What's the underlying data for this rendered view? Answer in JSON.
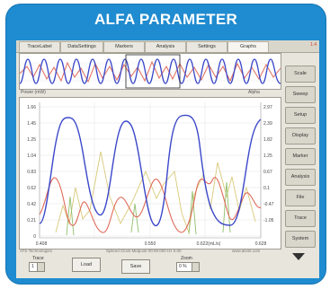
{
  "title": "ALFA PARAMETER",
  "tabs": [
    "TraceLabel",
    "DataSettings",
    "Markers",
    "Analysis",
    "Settings",
    "Graphs"
  ],
  "active_tab": "Graphs",
  "corner_label": "1.4",
  "plot": {
    "left_axis_title": "Power (mW)",
    "right_axis_title": "Alpha",
    "left_ticks": [
      "1.66",
      "1.45",
      "1.25",
      "1.04",
      "0.83",
      "0.62",
      "0.42",
      "0.21",
      "0"
    ],
    "right_ticks": [
      "2.97",
      "2.39",
      "1.82",
      "1.25",
      "0.67",
      "0.1",
      "-0.47",
      "-1.05"
    ],
    "x_ticks": [
      "0.408",
      "0.550",
      "0.622(mL/s)",
      "0.628"
    ]
  },
  "sidebar": [
    "Scale",
    "Sweep",
    "Setup",
    "Display",
    "Marker",
    "Analysis",
    "File",
    "Trace",
    "System"
  ],
  "footer": {
    "left_small": "ATS Technologies",
    "mid_small": "Spliced Clock Midpoint 00:00:000 Hz   0.00",
    "right_small": "www.atsint.com",
    "trace_label": "Trace",
    "trace_value": "1",
    "load_label": "Load",
    "save_label": "Save",
    "zoom_label": "Zoom",
    "zoom_value": "0 %"
  },
  "colors": {
    "frame": "#1f8bd0",
    "blue_series": "#3a47c9",
    "red_series": "#e06b5a",
    "yellow_series": "#d8c978",
    "green_series": "#8fbf6a"
  }
}
